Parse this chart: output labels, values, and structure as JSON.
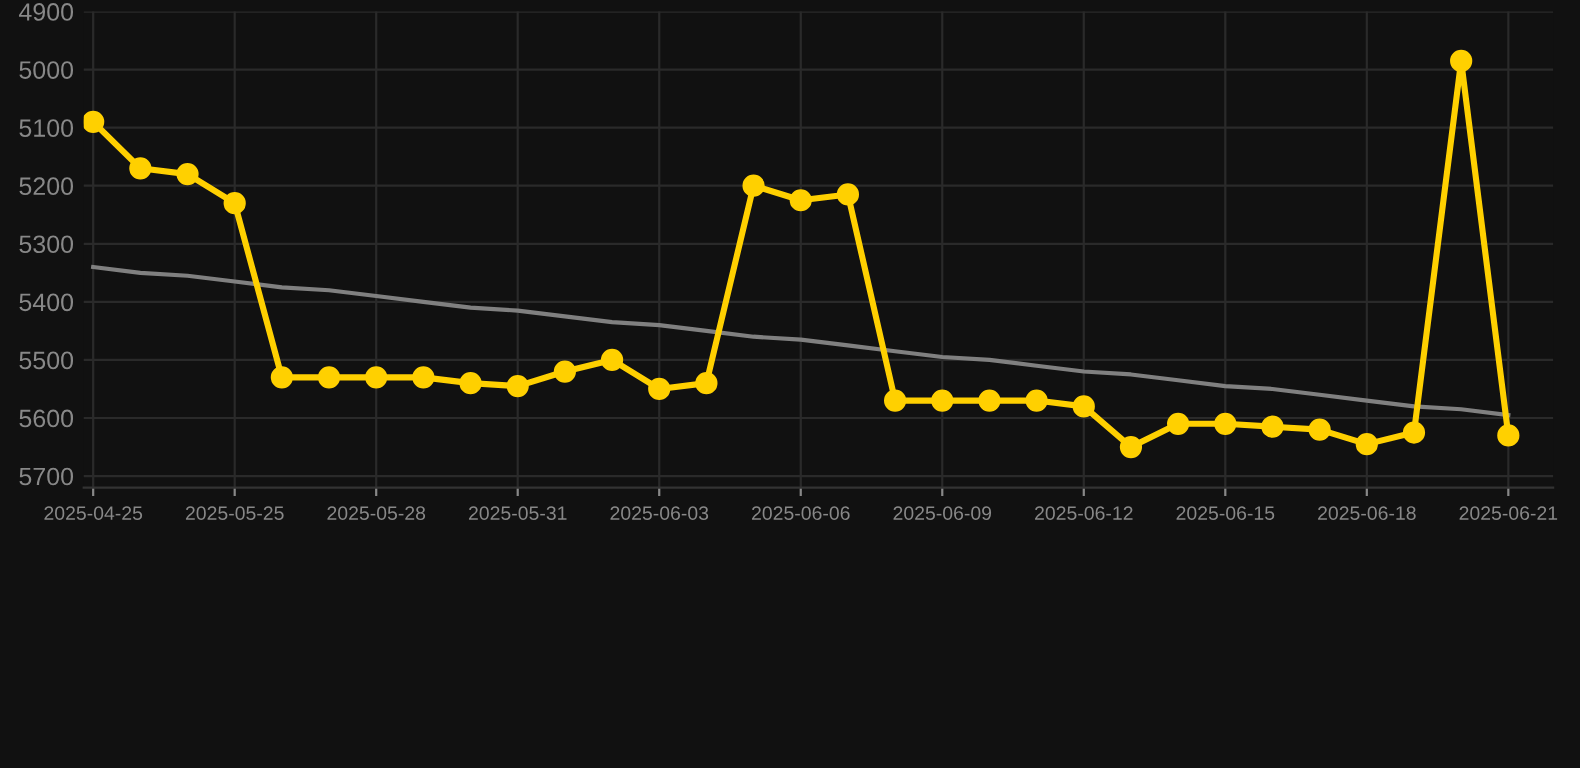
{
  "chart_data": {
    "type": "line",
    "categories": [
      "2025-04-25",
      null,
      null,
      "2025-05-25",
      null,
      null,
      "2025-05-28",
      null,
      null,
      "2025-05-31",
      null,
      null,
      "2025-06-03",
      null,
      null,
      "2025-06-06",
      null,
      null,
      "2025-06-09",
      null,
      null,
      "2025-06-12",
      null,
      null,
      "2025-06-15",
      null,
      null,
      "2025-06-18",
      null,
      null,
      "2025-06-21"
    ],
    "series": [
      {
        "color": "#ffd000",
        "marker": "circle",
        "values": [
          5090,
          5170,
          5180,
          5230,
          5530,
          5530,
          5530,
          5530,
          5540,
          5545,
          5520,
          5500,
          5550,
          5540,
          5200,
          5225,
          5215,
          5570,
          5570,
          5570,
          5570,
          5580,
          5650,
          5610,
          5610,
          5615,
          5620,
          5645,
          5625,
          4985,
          5630
        ]
      },
      {
        "color": "#808080",
        "marker": "none",
        "values": [
          5340,
          5350,
          5355,
          5365,
          5375,
          5380,
          5390,
          5400,
          5410,
          5415,
          5425,
          5435,
          5440,
          5450,
          5460,
          5465,
          5475,
          5485,
          5495,
          5500,
          5510,
          5520,
          5525,
          5535,
          5545,
          5550,
          5560,
          5570,
          5580,
          5585,
          5595
        ]
      }
    ],
    "ylim": [
      5720,
      4900
    ],
    "yticks": [
      4900,
      5000,
      5100,
      5200,
      5300,
      5400,
      5500,
      5600,
      5700
    ],
    "grid": true
  }
}
